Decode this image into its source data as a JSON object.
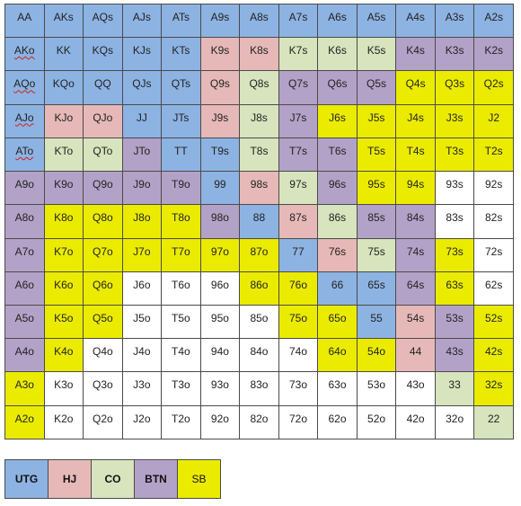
{
  "colors": {
    "UTG": "#8db3e2",
    "HJ": "#e6b9b8",
    "CO": "#d7e4bd",
    "BTN": "#b3a2c7",
    "SB": "#ebeb00",
    "none": "#ffffff"
  },
  "grid": {
    "rows": [
      {
        "hands": [
          "AA",
          "AKs",
          "AQs",
          "AJs",
          "ATs",
          "A9s",
          "A8s",
          "A7s",
          "A6s",
          "A5s",
          "A4s",
          "A3s",
          "A2s"
        ],
        "pos": [
          "UTG",
          "UTG",
          "UTG",
          "UTG",
          "UTG",
          "UTG",
          "UTG",
          "UTG",
          "UTG",
          "UTG",
          "UTG",
          "UTG",
          "UTG"
        ]
      },
      {
        "hands": [
          "AKo",
          "KK",
          "KQs",
          "KJs",
          "KTs",
          "K9s",
          "K8s",
          "K7s",
          "K6s",
          "K5s",
          "K4s",
          "K3s",
          "K2s"
        ],
        "pos": [
          "UTG",
          "UTG",
          "UTG",
          "UTG",
          "UTG",
          "HJ",
          "HJ",
          "CO",
          "CO",
          "CO",
          "BTN",
          "BTN",
          "BTN"
        ]
      },
      {
        "hands": [
          "AQo",
          "KQo",
          "QQ",
          "QJs",
          "QTs",
          "Q9s",
          "Q8s",
          "Q7s",
          "Q6s",
          "Q5s",
          "Q4s",
          "Q3s",
          "Q2s"
        ],
        "pos": [
          "UTG",
          "UTG",
          "UTG",
          "UTG",
          "UTG",
          "HJ",
          "CO",
          "BTN",
          "BTN",
          "BTN",
          "SB",
          "SB",
          "SB"
        ]
      },
      {
        "hands": [
          "AJo",
          "KJo",
          "QJo",
          "JJ",
          "JTs",
          "J9s",
          "J8s",
          "J7s",
          "J6s",
          "J5s",
          "J4s",
          "J3s",
          "J2"
        ],
        "pos": [
          "UTG",
          "HJ",
          "HJ",
          "UTG",
          "UTG",
          "HJ",
          "CO",
          "BTN",
          "SB",
          "SB",
          "SB",
          "SB",
          "SB"
        ]
      },
      {
        "hands": [
          "ATo",
          "KTo",
          "QTo",
          "JTo",
          "TT",
          "T9s",
          "T8s",
          "T7s",
          "T6s",
          "T5s",
          "T4s",
          "T3s",
          "T2s"
        ],
        "pos": [
          "UTG",
          "CO",
          "CO",
          "BTN",
          "UTG",
          "UTG",
          "CO",
          "BTN",
          "BTN",
          "SB",
          "SB",
          "SB",
          "SB"
        ]
      },
      {
        "hands": [
          "A9o",
          "K9o",
          "Q9o",
          "J9o",
          "T9o",
          "99",
          "98s",
          "97s",
          "96s",
          "95s",
          "94s",
          "93s",
          "92s"
        ],
        "pos": [
          "BTN",
          "BTN",
          "BTN",
          "BTN",
          "BTN",
          "UTG",
          "HJ",
          "CO",
          "BTN",
          "SB",
          "SB",
          "none",
          "none"
        ]
      },
      {
        "hands": [
          "A8o",
          "K8o",
          "Q8o",
          "J8o",
          "T8o",
          "98o",
          "88",
          "87s",
          "86s",
          "85s",
          "84s",
          "83s",
          "82s"
        ],
        "pos": [
          "BTN",
          "SB",
          "SB",
          "SB",
          "SB",
          "BTN",
          "UTG",
          "HJ",
          "CO",
          "BTN",
          "BTN",
          "none",
          "none"
        ]
      },
      {
        "hands": [
          "A7o",
          "K7o",
          "Q7o",
          "J7o",
          "T7o",
          "97o",
          "87o",
          "77",
          "76s",
          "75s",
          "74s",
          "73s",
          "72s"
        ],
        "pos": [
          "BTN",
          "SB",
          "SB",
          "SB",
          "SB",
          "SB",
          "SB",
          "UTG",
          "HJ",
          "CO",
          "BTN",
          "SB",
          "none"
        ]
      },
      {
        "hands": [
          "A6o",
          "K6o",
          "Q6o",
          "J6o",
          "T6o",
          "96o",
          "86o",
          "76o",
          "66",
          "65s",
          "64s",
          "63s",
          "62s"
        ],
        "pos": [
          "BTN",
          "SB",
          "SB",
          "none",
          "none",
          "none",
          "SB",
          "SB",
          "UTG",
          "UTG",
          "BTN",
          "SB",
          "none"
        ]
      },
      {
        "hands": [
          "A5o",
          "K5o",
          "Q5o",
          "J5o",
          "T5o",
          "95o",
          "85o",
          "75o",
          "65o",
          "55",
          "54s",
          "53s",
          "52s"
        ],
        "pos": [
          "BTN",
          "SB",
          "SB",
          "none",
          "none",
          "none",
          "none",
          "SB",
          "SB",
          "UTG",
          "HJ",
          "BTN",
          "SB"
        ]
      },
      {
        "hands": [
          "A4o",
          "K4o",
          "Q4o",
          "J4o",
          "T4o",
          "94o",
          "84o",
          "74o",
          "64o",
          "54o",
          "44",
          "43s",
          "42s"
        ],
        "pos": [
          "BTN",
          "SB",
          "none",
          "none",
          "none",
          "none",
          "none",
          "none",
          "SB",
          "SB",
          "HJ",
          "BTN",
          "SB"
        ]
      },
      {
        "hands": [
          "A3o",
          "K3o",
          "Q3o",
          "J3o",
          "T3o",
          "93o",
          "83o",
          "73o",
          "63o",
          "53o",
          "43o",
          "33",
          "32s"
        ],
        "pos": [
          "SB",
          "none",
          "none",
          "none",
          "none",
          "none",
          "none",
          "none",
          "none",
          "none",
          "none",
          "CO",
          "SB"
        ]
      },
      {
        "hands": [
          "A2o",
          "K2o",
          "Q2o",
          "J2o",
          "T2o",
          "92o",
          "82o",
          "72o",
          "62o",
          "52o",
          "42o",
          "32o",
          "22"
        ],
        "pos": [
          "SB",
          "none",
          "none",
          "none",
          "none",
          "none",
          "none",
          "none",
          "none",
          "none",
          "none",
          "none",
          "CO"
        ]
      }
    ]
  },
  "legend": [
    {
      "label": "UTG",
      "pos": "UTG",
      "bold": true
    },
    {
      "label": "HJ",
      "pos": "HJ",
      "bold": true
    },
    {
      "label": "CO",
      "pos": "CO",
      "bold": true
    },
    {
      "label": "BTN",
      "pos": "BTN",
      "bold": true
    },
    {
      "label": "SB",
      "pos": "SB",
      "bold": false
    }
  ]
}
